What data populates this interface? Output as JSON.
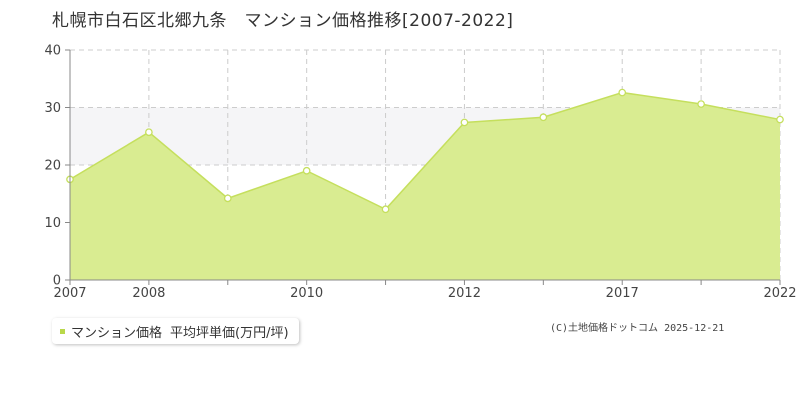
{
  "title": "札幌市白石区北郷九条　マンション価格推移[2007-2022]",
  "legend": {
    "series_label": "マンション価格",
    "unit_label": "平均坪単価(万円/坪)"
  },
  "source": "(C)土地価格ドットコム 2025-12-21",
  "colors": {
    "fill": "#d9ec91",
    "line": "#c5df5d",
    "band": "#f5f5f7",
    "grid": "#cccccc",
    "axis": "#888888",
    "swatch": "#b9d84a"
  },
  "chart_data": {
    "type": "area",
    "title": "札幌市白石区北郷九条　マンション価格推移[2007-2022]",
    "xlabel": "",
    "ylabel": "",
    "ylim": [
      0,
      40
    ],
    "yticks": [
      0,
      10,
      20,
      30,
      40
    ],
    "x_positions": 10,
    "x_tick_labels": [
      {
        "index": 0,
        "label": "2007"
      },
      {
        "index": 1,
        "label": "2008"
      },
      {
        "index": 3,
        "label": "2010"
      },
      {
        "index": 5,
        "label": "2012"
      },
      {
        "index": 7,
        "label": "2017"
      },
      {
        "index": 9,
        "label": "2022"
      }
    ],
    "shaded_band": [
      20,
      30
    ],
    "grid": true,
    "series": [
      {
        "values": [
          17.5,
          25.7,
          14.2,
          19.0,
          12.3,
          27.4,
          28.3,
          32.6,
          30.6,
          27.9
        ]
      }
    ]
  }
}
